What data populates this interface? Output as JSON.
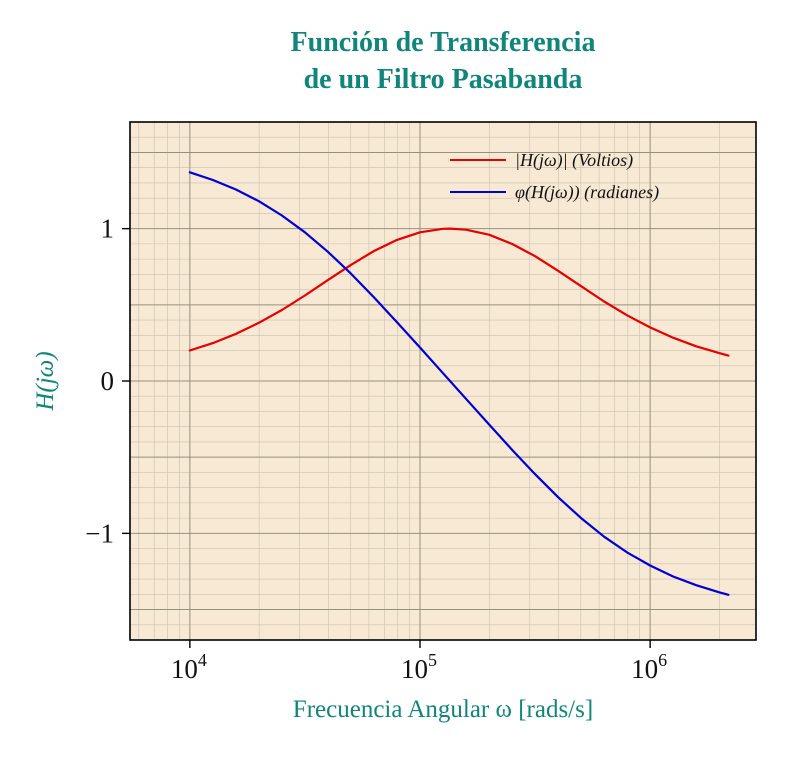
{
  "theme": {
    "accent": "#0f857c",
    "background": "#ffffff"
  },
  "title": {
    "lines": [
      "Función de Transferencia",
      "de un Filtro Pasabanda"
    ],
    "color": "#0f857c"
  },
  "chart_data": {
    "type": "line",
    "title": "Función de Transferencia de un Filtro Pasabanda",
    "xlabel": "Frecuencia Angular ω [rads/s]",
    "ylabel": "H(jω)",
    "x_scale": "log10",
    "xlim": [
      5495,
      2884000
    ],
    "ylim": [
      -1.7,
      1.7
    ],
    "xticks": [
      10000,
      100000,
      1000000
    ],
    "xtick_labels": [
      "10^4",
      "10^5",
      "10^6"
    ],
    "yticks": [
      1,
      0,
      -1
    ],
    "ytick_labels": [
      "1",
      "0",
      "−1"
    ],
    "grid": {
      "mode": "both",
      "minor_color": "#c8c0b2",
      "major_color": "#96907f"
    },
    "plot_background": "#f8e9d4",
    "axis_color": "#000000",
    "legend": {
      "position": "top-right",
      "entries": [
        {
          "label": "|H(jω)| (Voltios)",
          "color": "#e60000"
        },
        {
          "label": "φ(H(jω)) (radianes)",
          "color": "#0000d6"
        }
      ]
    },
    "series": [
      {
        "name": "magnitude-voltios",
        "color": "#e60000",
        "x": [
          10000,
          12589,
          15849,
          19953,
          25119,
          31623,
          39811,
          50119,
          63096,
          79433,
          100000,
          125893,
          135000,
          158489,
          199526,
          251189,
          316228,
          398107,
          501187,
          630957,
          794328,
          1000000,
          1258925,
          1584893,
          1995262,
          2187762
        ],
        "y": [
          0.2,
          0.249,
          0.309,
          0.382,
          0.466,
          0.561,
          0.662,
          0.762,
          0.853,
          0.926,
          0.976,
          0.999,
          1.0,
          0.993,
          0.96,
          0.9,
          0.819,
          0.723,
          0.622,
          0.522,
          0.431,
          0.352,
          0.284,
          0.228,
          0.183,
          0.167
        ]
      },
      {
        "name": "phase-radianes",
        "color": "#0000d6",
        "x": [
          10000,
          12589,
          15849,
          19953,
          25119,
          31623,
          39811,
          50119,
          63096,
          79433,
          100000,
          125893,
          135000,
          158489,
          199526,
          251189,
          316228,
          398107,
          501187,
          630957,
          794328,
          1000000,
          1258925,
          1584893,
          1995262,
          2187762
        ],
        "y": [
          1.37,
          1.319,
          1.257,
          1.18,
          1.086,
          0.976,
          0.848,
          0.705,
          0.549,
          0.386,
          0.22,
          0.051,
          0.0,
          -0.117,
          -0.285,
          -0.451,
          -0.612,
          -0.763,
          -0.9,
          -1.022,
          -1.125,
          -1.211,
          -1.283,
          -1.34,
          -1.387,
          -1.403
        ]
      }
    ]
  }
}
